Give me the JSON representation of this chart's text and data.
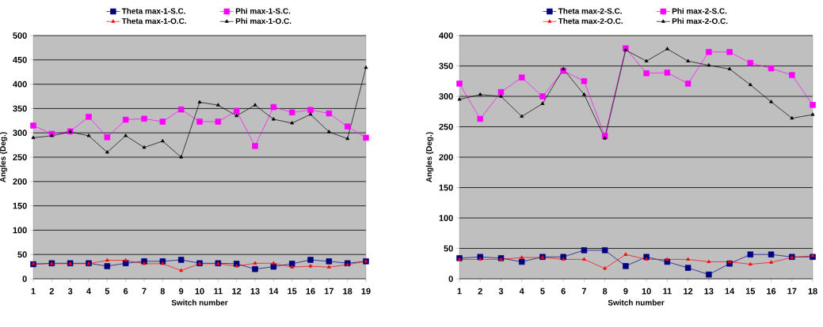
{
  "chart_data": [
    {
      "type": "line",
      "xlabel": "Switch number",
      "ylabel": "Angles (Deg.)",
      "categories": [
        "1",
        "2",
        "3",
        "4",
        "5",
        "6",
        "7",
        "8",
        "9",
        "10",
        "11",
        "12",
        "13",
        "14",
        "15",
        "16",
        "17",
        "18",
        "19"
      ],
      "ylim": [
        0,
        500
      ],
      "yticks": [
        0,
        50,
        100,
        150,
        200,
        250,
        300,
        350,
        400,
        450,
        500
      ],
      "grid": "y",
      "legend": "top",
      "line_style": "solid",
      "series": [
        {
          "name": "Theta max-1-S.C.",
          "color": "#000080",
          "marker": "square",
          "values": [
            30,
            32,
            32,
            32,
            26,
            32,
            36,
            36,
            39,
            32,
            32,
            31,
            20,
            25,
            31,
            39,
            36,
            32,
            36
          ]
        },
        {
          "name": "Phi max-1-S.C.",
          "color": "#ff00ff",
          "marker": "square",
          "values": [
            315,
            298,
            303,
            333,
            291,
            327,
            329,
            323,
            348,
            323,
            323,
            345,
            273,
            353,
            342,
            347,
            340,
            313,
            290
          ]
        },
        {
          "name": "Theta max-1-O.C.",
          "color": "#ff0000",
          "marker": "triangle",
          "values": [
            31,
            31,
            31,
            31,
            38,
            38,
            31,
            31,
            17,
            31,
            31,
            26,
            32,
            32,
            24,
            26,
            24,
            29,
            36
          ]
        },
        {
          "name": "Phi max-1-O.C.",
          "color": "#000000",
          "marker": "triangle",
          "values": [
            290,
            294,
            302,
            294,
            260,
            294,
            270,
            283,
            250,
            363,
            357,
            335,
            357,
            328,
            320,
            338,
            302,
            288,
            434
          ]
        }
      ]
    },
    {
      "type": "line",
      "xlabel": "Switch number",
      "ylabel": "Angles (Deg.)",
      "categories": [
        "1",
        "2",
        "3",
        "4",
        "5",
        "6",
        "7",
        "8",
        "9",
        "10",
        "11",
        "12",
        "13",
        "14",
        "15",
        "16",
        "17",
        "18"
      ],
      "ylim": [
        0,
        400
      ],
      "yticks": [
        0,
        50,
        100,
        150,
        200,
        250,
        300,
        350,
        400
      ],
      "grid": "y",
      "legend": "top",
      "line_style": "solid",
      "series": [
        {
          "name": "Theta max-2-S.C.",
          "color": "#000080",
          "marker": "square",
          "values": [
            34,
            36,
            34,
            28,
            36,
            36,
            47,
            47,
            21,
            36,
            28,
            18,
            7,
            25,
            40,
            40,
            36,
            36
          ]
        },
        {
          "name": "Phi max-2-S.C.",
          "color": "#ff00ff",
          "marker": "square",
          "values": [
            321,
            263,
            307,
            331,
            300,
            342,
            325,
            235,
            379,
            338,
            339,
            321,
            373,
            373,
            355,
            346,
            335,
            286
          ]
        },
        {
          "name": "Theta max-2-O.C.",
          "color": "#ff0000",
          "marker": "triangle",
          "values": [
            32,
            32,
            32,
            35,
            35,
            32,
            32,
            17,
            40,
            32,
            32,
            32,
            28,
            28,
            24,
            27,
            35,
            38
          ]
        },
        {
          "name": "Phi max-2-O.C.",
          "color": "#000000",
          "marker": "triangle",
          "values": [
            295,
            303,
            300,
            267,
            288,
            345,
            303,
            231,
            376,
            358,
            378,
            358,
            351,
            345,
            319,
            291,
            264,
            270
          ]
        }
      ]
    }
  ]
}
